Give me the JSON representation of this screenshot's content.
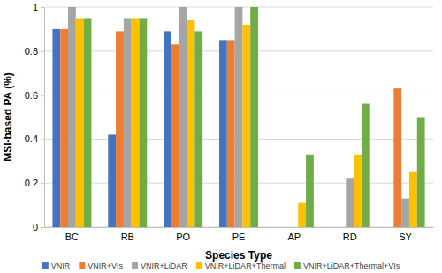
{
  "chart_data": {
    "type": "bar",
    "x_label": "Species Type",
    "y_label": "MSI-based PA (%)",
    "categories": [
      "BC",
      "RB",
      "PO",
      "PE",
      "AP",
      "RD",
      "SY"
    ],
    "series": [
      {
        "name": "VNIR",
        "color": "#4472c4",
        "values": [
          0.9,
          0.42,
          0.89,
          0.85,
          0,
          0,
          0
        ]
      },
      {
        "name": "VNIR+VIs",
        "color": "#ed7d31",
        "values": [
          0.9,
          0.89,
          0.83,
          0.85,
          0,
          0,
          0.63
        ]
      },
      {
        "name": "VNIR+LiDAR",
        "color": "#a5a5a5",
        "values": [
          1.0,
          0.95,
          1.0,
          1.0,
          0,
          0.22,
          0.13
        ]
      },
      {
        "name": "VNIR+LiDAR+Thermal",
        "color": "#ffc000",
        "values": [
          0.95,
          0.95,
          0.94,
          0.92,
          0.11,
          0.33,
          0.25
        ]
      },
      {
        "name": "VNIR+LiDAR+Thermal+VIs",
        "color": "#70ad47",
        "values": [
          0.95,
          0.95,
          0.89,
          1.0,
          0.33,
          0.56,
          0.5
        ]
      }
    ],
    "ylim": [
      0,
      1
    ],
    "yticks": [
      0,
      0.2,
      0.4,
      0.6,
      0.8,
      1
    ],
    "grid": true,
    "legend": "bottom"
  }
}
